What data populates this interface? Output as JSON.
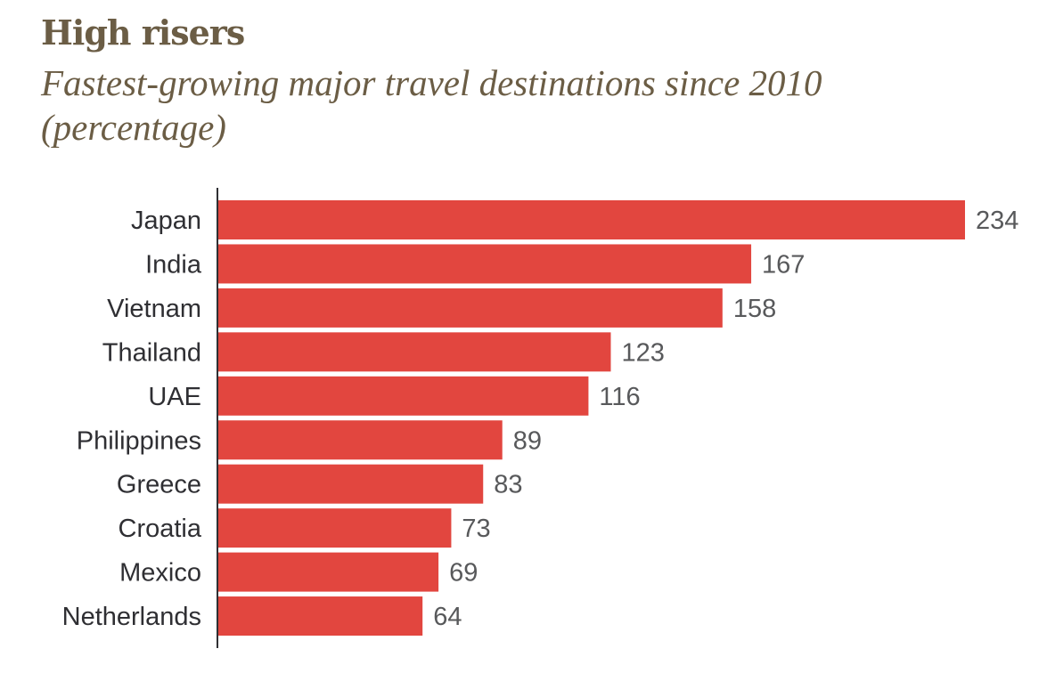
{
  "chart_data": {
    "type": "bar",
    "orientation": "horizontal",
    "title": "High risers",
    "subtitle": "Fastest-growing major travel destinations since 2010 (percentage)",
    "categories": [
      "Japan",
      "India",
      "Vietnam",
      "Thailand",
      "UAE",
      "Philippines",
      "Greece",
      "Croatia",
      "Mexico",
      "Netherlands"
    ],
    "values": [
      234,
      167,
      158,
      123,
      116,
      89,
      83,
      73,
      69,
      64
    ],
    "xlabel": "",
    "ylabel": "",
    "xlim": [
      0,
      234
    ],
    "grid": false,
    "legend": "none",
    "bar_color": "#e2463f",
    "axis_color": "#2f2f33"
  }
}
